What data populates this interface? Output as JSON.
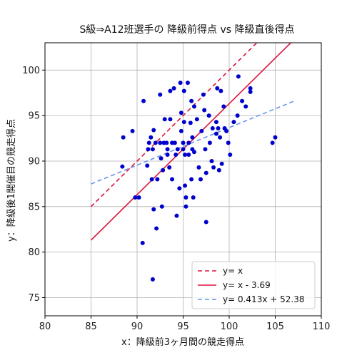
{
  "chart_data": {
    "type": "scatter",
    "title": "S級⇒A12班選手の 降級前得点 vs 降級直後得点",
    "xlabel": "x：降級前3ヶ月間の競走得点",
    "ylabel": "y：降級後1開催目の競走得点",
    "xlim": [
      80,
      110
    ],
    "ylim": [
      73,
      103
    ],
    "xticks": [
      80,
      85,
      90,
      95,
      100,
      105,
      110
    ],
    "yticks": [
      75,
      80,
      85,
      90,
      95,
      100
    ],
    "grid": true,
    "legend_position": "lower-right",
    "colors": {
      "points": "#0000cc",
      "identity": "#dc143c",
      "offset": "#dc143c",
      "regression": "#6495ed"
    },
    "points": [
      [
        88.5,
        92.6
      ],
      [
        89.5,
        93.3
      ],
      [
        88.4,
        89.4
      ],
      [
        89.8,
        86.0
      ],
      [
        90.2,
        86.0
      ],
      [
        90.6,
        81.0
      ],
      [
        90.7,
        96.6
      ],
      [
        91.2,
        91.3
      ],
      [
        91.3,
        92.0
      ],
      [
        91.1,
        89.5
      ],
      [
        91.5,
        92.6
      ],
      [
        91.6,
        88.0
      ],
      [
        91.7,
        91.3
      ],
      [
        91.8,
        93.4
      ],
      [
        92.0,
        92.0
      ],
      [
        91.7,
        77.0
      ],
      [
        91.8,
        84.7
      ],
      [
        92.1,
        82.6
      ],
      [
        92.2,
        88.0
      ],
      [
        92.5,
        97.3
      ],
      [
        92.5,
        92.0
      ],
      [
        92.6,
        90.3
      ],
      [
        92.7,
        85.0
      ],
      [
        92.8,
        89.0
      ],
      [
        92.9,
        92.0
      ],
      [
        93.0,
        94.6
      ],
      [
        93.2,
        92.0
      ],
      [
        93.3,
        91.3
      ],
      [
        93.3,
        90.7
      ],
      [
        93.5,
        89.3
      ],
      [
        93.6,
        94.6
      ],
      [
        93.6,
        97.7
      ],
      [
        93.8,
        92.0
      ],
      [
        93.8,
        88.0
      ],
      [
        94.0,
        98.0
      ],
      [
        94.1,
        92.0
      ],
      [
        94.2,
        90.7
      ],
      [
        94.3,
        84.0
      ],
      [
        94.4,
        91.3
      ],
      [
        94.6,
        87.0
      ],
      [
        94.7,
        98.6
      ],
      [
        94.8,
        95.3
      ],
      [
        94.8,
        93.3
      ],
      [
        95.0,
        92.0
      ],
      [
        95.0,
        91.3
      ],
      [
        95.1,
        97.7
      ],
      [
        95.1,
        94.3
      ],
      [
        95.2,
        90.7
      ],
      [
        95.2,
        87.3
      ],
      [
        95.3,
        86.0
      ],
      [
        95.3,
        85.0
      ],
      [
        95.5,
        98.6
      ],
      [
        95.6,
        92.0
      ],
      [
        95.6,
        90.7
      ],
      [
        95.8,
        94.2
      ],
      [
        95.9,
        96.6
      ],
      [
        95.9,
        88.0
      ],
      [
        96.0,
        91.3
      ],
      [
        96.0,
        92.6
      ],
      [
        96.1,
        86.0
      ],
      [
        96.2,
        96.0
      ],
      [
        96.2,
        91.0
      ],
      [
        96.5,
        94.6
      ],
      [
        96.7,
        89.3
      ],
      [
        96.9,
        88.0
      ],
      [
        97.0,
        93.3
      ],
      [
        97.2,
        97.3
      ],
      [
        97.3,
        95.6
      ],
      [
        97.4,
        91.3
      ],
      [
        97.5,
        88.7
      ],
      [
        97.5,
        83.3
      ],
      [
        97.8,
        95.0
      ],
      [
        97.9,
        92.0
      ],
      [
        98.1,
        90.0
      ],
      [
        98.2,
        93.6
      ],
      [
        98.3,
        89.3
      ],
      [
        98.6,
        94.3
      ],
      [
        98.6,
        93.0
      ],
      [
        98.7,
        98.0
      ],
      [
        98.8,
        93.6
      ],
      [
        98.9,
        89.0
      ],
      [
        99.0,
        92.6
      ],
      [
        99.1,
        97.7
      ],
      [
        99.2,
        89.7
      ],
      [
        99.4,
        96.0
      ],
      [
        99.5,
        93.6
      ],
      [
        99.7,
        93.3
      ],
      [
        99.9,
        92.0
      ],
      [
        100.1,
        90.7
      ],
      [
        100.5,
        94.3
      ],
      [
        100.9,
        95.0
      ],
      [
        101.0,
        99.3
      ],
      [
        101.4,
        96.6
      ],
      [
        101.8,
        96.0
      ],
      [
        102.3,
        98.0
      ],
      [
        102.3,
        97.6
      ],
      [
        104.7,
        92.0
      ],
      [
        105.0,
        92.6
      ]
    ],
    "lines": [
      {
        "name": "y= x",
        "slope": 1.0,
        "intercept": 0.0,
        "x_range": [
          85,
          107
        ],
        "dash": "dashed"
      },
      {
        "name": "y= x - 3.69",
        "slope": 1.0,
        "intercept": -3.69,
        "x_range": [
          85,
          107
        ],
        "dash": "solid"
      },
      {
        "name": "y= 0.413x + 52.38",
        "slope": 0.413,
        "intercept": 52.38,
        "x_range": [
          85,
          107
        ],
        "dash": "dashed"
      }
    ]
  }
}
